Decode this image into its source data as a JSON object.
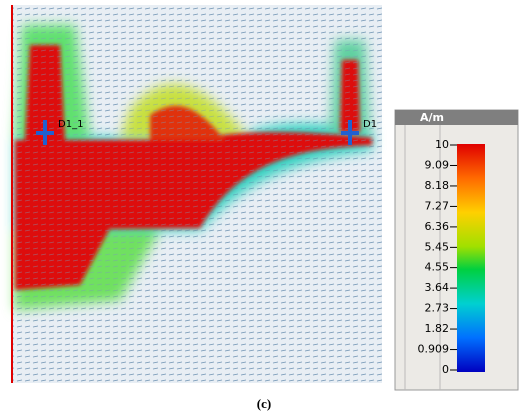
{
  "field_plot": {
    "port_left": "D1_1",
    "port_right": "D1"
  },
  "colorbar": {
    "unit": "A/m",
    "ticks": [
      10,
      9.09,
      8.18,
      7.27,
      6.36,
      5.45,
      4.55,
      3.64,
      2.73,
      1.82,
      0.909,
      0
    ]
  },
  "caption": "(c)"
}
